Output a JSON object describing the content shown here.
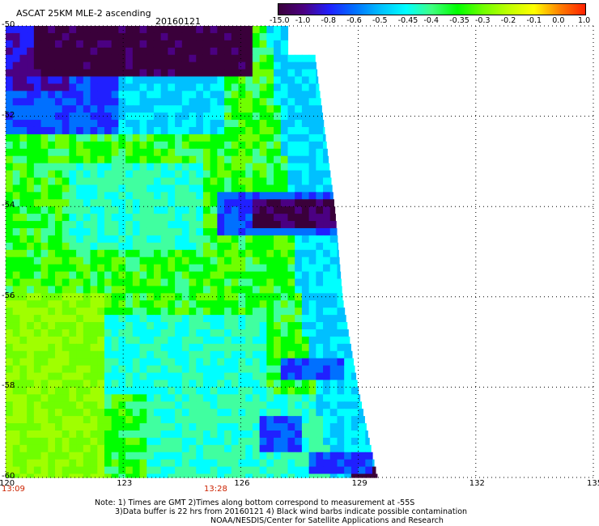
{
  "header": {
    "title": "ASCAT 25KM MLE-2 ascending",
    "date": "20160121"
  },
  "colorbar": {
    "labels": [
      "-15.0",
      "-1.0",
      "-0.8",
      "-0.6",
      "-0.5",
      "-0.45",
      "-0.4",
      "-0.35",
      "-0.3",
      "-0.2",
      "-0.1",
      "0.0",
      "1.0"
    ],
    "colors": [
      "#3a003a",
      "#4b0082",
      "#2020ff",
      "#0070ff",
      "#00c0ff",
      "#00ffff",
      "#40ff80",
      "#00ff00",
      "#70ff00",
      "#c0ff00",
      "#ffff00",
      "#ff8000",
      "#ff2000"
    ]
  },
  "chart_data": {
    "type": "heatmap",
    "title": "ASCAT 25KM MLE-2 ascending",
    "x_ticks": [
      "120",
      "123",
      "126",
      "129",
      "132",
      "135"
    ],
    "y_ticks": [
      "-50",
      "-52",
      "-54",
      "-56",
      "-58",
      "-60"
    ],
    "xlim": [
      120,
      135
    ],
    "ylim": [
      -60,
      -50
    ],
    "grid": true,
    "color_scale_levels": [
      -15.0,
      -1.0,
      -0.8,
      -0.6,
      -0.5,
      -0.45,
      -0.4,
      -0.35,
      -0.3,
      -0.2,
      -0.1,
      0.0,
      1.0
    ],
    "swath_right_edge_lon_by_lat": [
      {
        "lat": -50,
        "lon": 127.8
      },
      {
        "lat": -52,
        "lon": 128.1
      },
      {
        "lat": -54,
        "lon": 128.4
      },
      {
        "lat": -56,
        "lon": 128.6
      },
      {
        "lat": -58,
        "lon": 129.0
      },
      {
        "lat": -60,
        "lon": 129.5
      }
    ]
  },
  "time_labels": {
    "start": "13:09",
    "mid": "13:28"
  },
  "notes": {
    "line1": "Note: 1) Times are GMT 2)Times along bottom correspond to measurement at -55S",
    "line2": "3)Data buffer is 22 hrs from 20160121 4) Black wind barbs indicate possible contamination",
    "line3": "NOAA/NESDIS/Center for Satellite Applications and Research"
  }
}
